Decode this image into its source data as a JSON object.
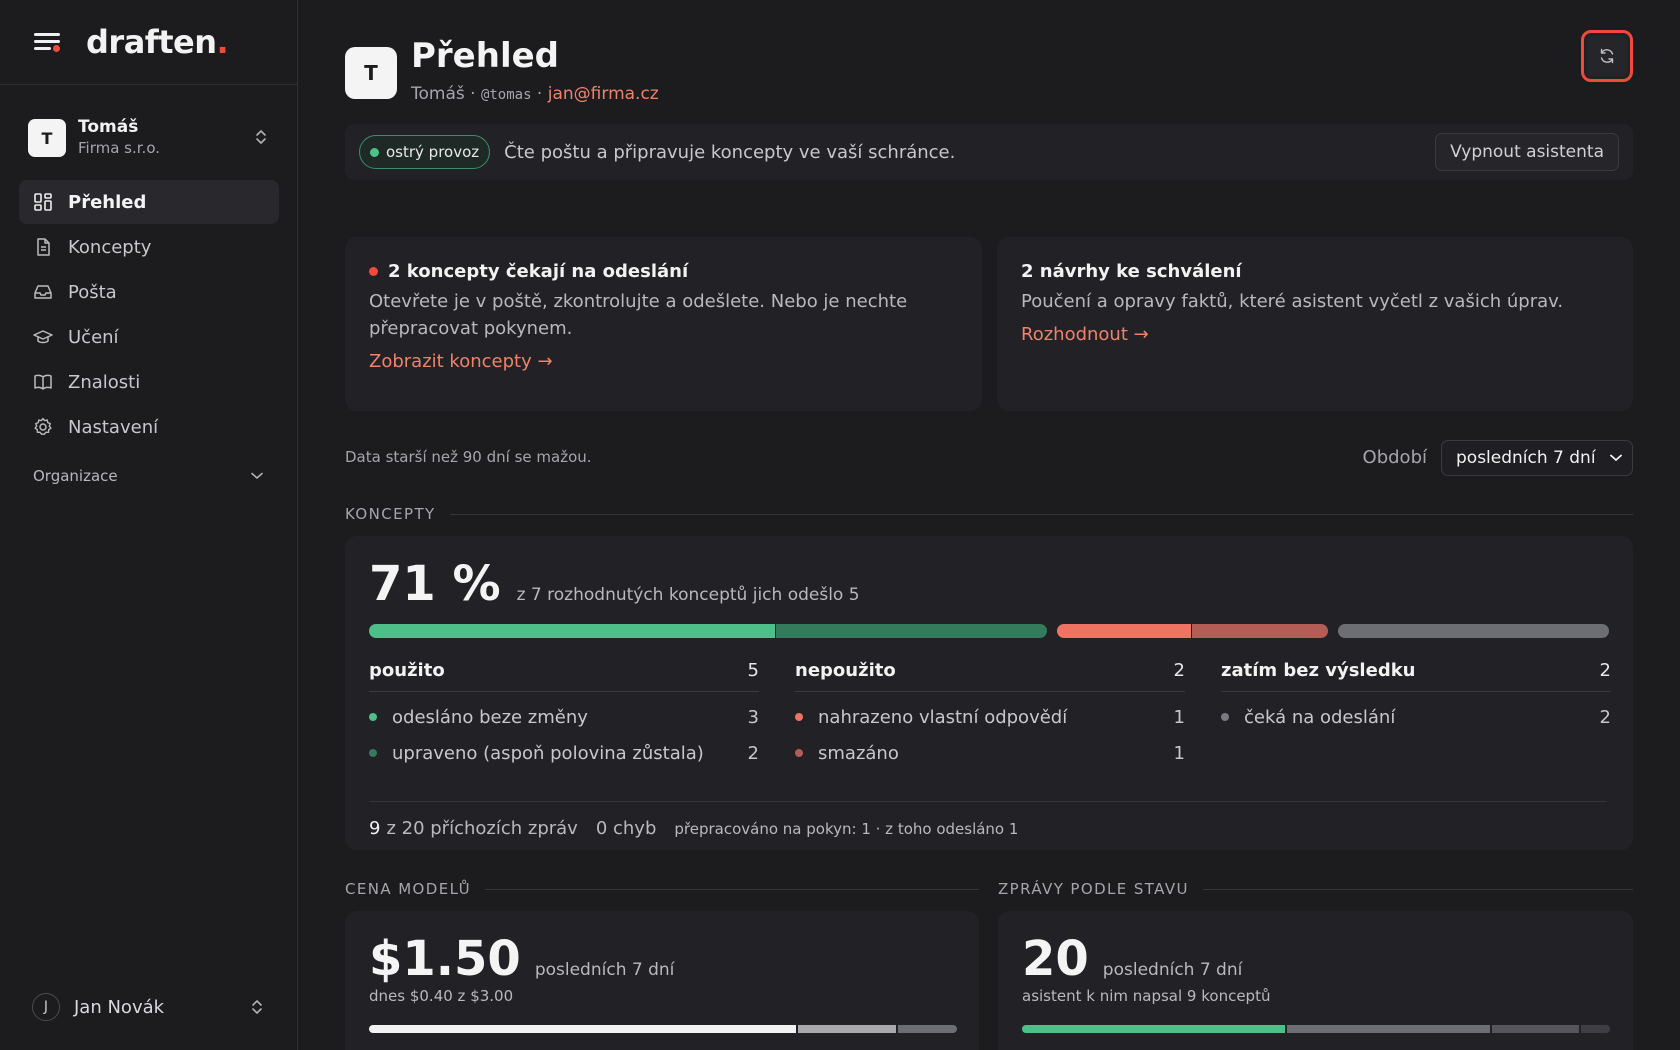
{
  "brand": {
    "name": "draften",
    "dot": "."
  },
  "account": {
    "initial": "T",
    "name": "Tomáš",
    "org": "Firma s.r.o."
  },
  "nav": {
    "items": [
      {
        "label": "Přehled",
        "icon": "dashboard-icon",
        "active": true
      },
      {
        "label": "Koncepty",
        "icon": "document-icon"
      },
      {
        "label": "Pošta",
        "icon": "inbox-icon"
      },
      {
        "label": "Učení",
        "icon": "graduation-cap-icon"
      },
      {
        "label": "Znalosti",
        "icon": "book-icon"
      },
      {
        "label": "Nastavení",
        "icon": "gear-icon"
      }
    ],
    "org_section": "Organizace"
  },
  "user": {
    "initial": "J",
    "name": "Jan Novák"
  },
  "header": {
    "initial": "T",
    "title": "Přehled",
    "name": "Tomáš",
    "sep1": " · ",
    "handle": "@tomas",
    "sep2": " · ",
    "email": "jan@firma.cz"
  },
  "status": {
    "badge": "ostrý provoz",
    "text": "Čte poštu a připravuje koncepty ve vaší schránce.",
    "button": "Vypnout asistenta"
  },
  "cards": {
    "drafts": {
      "title": "2 koncepty čekají na odeslání",
      "body": "Otevřete je v poště, zkontrolujte a odešlete. Nebo je nechte přepracovat pokynem.",
      "link": "Zobrazit koncepty →"
    },
    "approvals": {
      "title": "2 návrhy ke schválení",
      "body": "Poučení a opravy faktů, které asistent vyčetl z vašich úprav.",
      "link": "Rozhodnout →"
    }
  },
  "retention": "Data starší než 90 dní se mažou.",
  "period": {
    "label": "Období",
    "value": "posledních 7 dní"
  },
  "koncepty": {
    "section": "KONCEPTY",
    "percent": "71 %",
    "summary": "z 7 rozhodnutých konceptů jich odešlo 5",
    "groups": [
      {
        "title": "použito",
        "count": "5",
        "items": [
          {
            "label": "odesláno beze změny",
            "count": "3",
            "color": "#4fbf8a"
          },
          {
            "label": "upraveno (aspoň polovina zůstala)",
            "count": "2",
            "color": "#347a5c"
          }
        ]
      },
      {
        "title": "nepoužito",
        "count": "2",
        "items": [
          {
            "label": "nahrazeno vlastní odpovědí",
            "count": "1",
            "color": "#ef7362"
          },
          {
            "label": "smazáno",
            "count": "1",
            "color": "#b35d56"
          }
        ]
      },
      {
        "title": "zatím bez výsledku",
        "count": "2",
        "items": [
          {
            "label": "čeká na odeslání",
            "count": "2",
            "color": "#7a7a80"
          }
        ]
      }
    ],
    "bar": [
      {
        "value": 3,
        "color": "#4fbf8a"
      },
      {
        "value": 2,
        "color": "#347a5c"
      },
      {
        "value": 1,
        "color": "#ef7362"
      },
      {
        "value": 1,
        "color": "#b35d56"
      },
      {
        "value": 2,
        "color": "#6d6d74"
      }
    ],
    "footer": {
      "count": "9",
      "of_messages": "z 20 příchozích zpráv",
      "errors": "0 chyb",
      "reworked": "přepracováno na pokyn: 1 · z toho odesláno 1"
    }
  },
  "cost": {
    "section": "CENA MODELŮ",
    "amount": "$1.50",
    "period": "posledních 7 dní",
    "today": "dnes $0.40 z $3.00",
    "bar": [
      {
        "value": 0.73,
        "color": "#f2f2f2"
      },
      {
        "value": 0.17,
        "color": "#a8a8ad"
      },
      {
        "value": 0.1,
        "color": "#6d6d74"
      }
    ]
  },
  "messages": {
    "section": "ZPRÁVY PODLE STAVU",
    "count": "20",
    "period": "posledních 7 dní",
    "note": "asistent k nim napsal 9 konceptů",
    "bar": [
      {
        "value": 0.45,
        "color": "#4fbf8a"
      },
      {
        "value": 0.35,
        "color": "#6d6d74"
      },
      {
        "value": 0.15,
        "color": "#55555b"
      },
      {
        "value": 0.05,
        "color": "#3e3e44"
      }
    ]
  }
}
